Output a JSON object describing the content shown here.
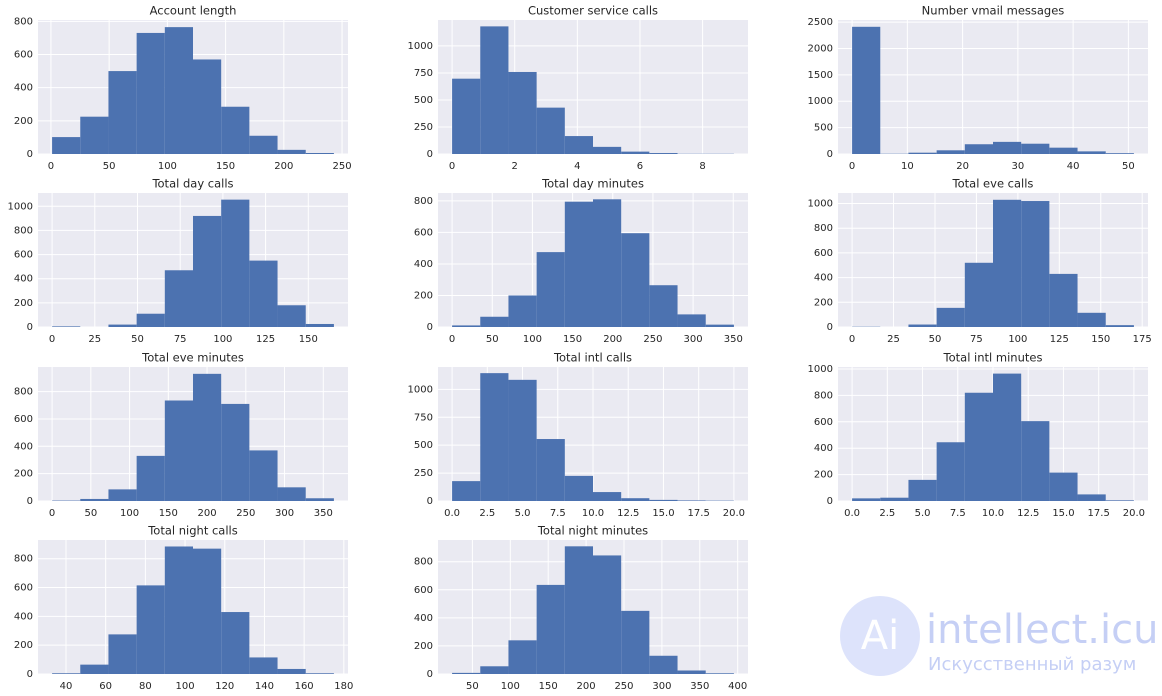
{
  "chart_data": [
    {
      "type": "histogram",
      "title": "Account length",
      "bins": [
        1,
        25.2,
        49.4,
        73.6,
        97.8,
        122,
        146.2,
        170.4,
        194.6,
        218.8,
        243
      ],
      "counts": [
        102,
        225,
        500,
        730,
        765,
        570,
        285,
        110,
        25,
        6
      ],
      "xlim": [
        -11.1,
        255.1
      ],
      "ylim": [
        0,
        808
      ],
      "xticks": [
        0,
        50,
        100,
        150,
        200,
        250
      ],
      "yticks": [
        0,
        200,
        400,
        600,
        800
      ],
      "grid": true,
      "color": "#4c72b0"
    },
    {
      "type": "histogram",
      "title": "Customer service calls",
      "bins": [
        0,
        0.9,
        1.8,
        2.7,
        3.6,
        4.5,
        5.4,
        6.3,
        7.2,
        8.1,
        9
      ],
      "counts": [
        697,
        1181,
        759,
        429,
        166,
        66,
        22,
        9,
        2,
        2
      ],
      "xlim": [
        -0.45,
        9.45
      ],
      "ylim": [
        0,
        1240
      ],
      "xticks": [
        0,
        2,
        4,
        6,
        8
      ],
      "yticks": [
        0,
        250,
        500,
        750,
        1000
      ],
      "grid": true,
      "color": "#4c72b0"
    },
    {
      "type": "histogram",
      "title": "Number vmail messages",
      "bins": [
        0,
        5.1,
        10.2,
        15.3,
        20.4,
        25.5,
        30.6,
        35.7,
        40.8,
        45.9,
        51
      ],
      "counts": [
        2411,
        5,
        25,
        70,
        185,
        230,
        195,
        120,
        50,
        15
      ],
      "xlim": [
        -2.55,
        53.55
      ],
      "ylim": [
        0,
        2540
      ],
      "xticks": [
        0,
        10,
        20,
        30,
        40,
        50
      ],
      "yticks": [
        0,
        500,
        1000,
        1500,
        2000,
        2500
      ],
      "grid": true,
      "color": "#4c72b0"
    },
    {
      "type": "histogram",
      "title": "Total day calls",
      "bins": [
        0,
        16.5,
        33,
        49.5,
        66,
        82.5,
        99,
        115.5,
        132,
        148.5,
        165
      ],
      "counts": [
        5,
        0,
        20,
        110,
        470,
        920,
        1055,
        550,
        180,
        25
      ],
      "xlim": [
        -8.25,
        173.25
      ],
      "ylim": [
        0,
        1110
      ],
      "xticks": [
        0,
        25,
        50,
        75,
        100,
        125,
        150
      ],
      "yticks": [
        0,
        200,
        400,
        600,
        800,
        1000
      ],
      "grid": true,
      "color": "#4c72b0"
    },
    {
      "type": "histogram",
      "title": "Total day minutes",
      "bins": [
        0,
        35.08,
        70.16,
        105.24,
        140.32,
        175.4,
        210.48,
        245.56,
        280.64,
        315.72,
        350.8
      ],
      "counts": [
        10,
        65,
        200,
        475,
        795,
        810,
        595,
        265,
        80,
        15
      ],
      "xlim": [
        -17.54,
        368.34
      ],
      "ylim": [
        0,
        850
      ],
      "xticks": [
        0,
        50,
        100,
        150,
        200,
        250,
        300,
        350
      ],
      "yticks": [
        0,
        200,
        400,
        600,
        800
      ],
      "grid": true,
      "color": "#4c72b0"
    },
    {
      "type": "histogram",
      "title": "Total eve calls",
      "bins": [
        0,
        17,
        34,
        51,
        68,
        85,
        102,
        119,
        136,
        153,
        170
      ],
      "counts": [
        2,
        0,
        20,
        155,
        520,
        1030,
        1020,
        430,
        115,
        15
      ],
      "xlim": [
        -8.5,
        178.5
      ],
      "ylim": [
        0,
        1085
      ],
      "xticks": [
        0,
        25,
        50,
        75,
        100,
        125,
        150,
        175
      ],
      "yticks": [
        0,
        200,
        400,
        600,
        800,
        1000
      ],
      "grid": true,
      "color": "#4c72b0"
    },
    {
      "type": "histogram",
      "title": "Total eve minutes",
      "bins": [
        0,
        36.37,
        72.74,
        109.11,
        145.48,
        181.85,
        218.22,
        254.59,
        290.96,
        327.33,
        363.7
      ],
      "counts": [
        3,
        15,
        85,
        330,
        735,
        930,
        710,
        370,
        100,
        20
      ],
      "xlim": [
        -18.2,
        381.9
      ],
      "ylim": [
        0,
        980
      ],
      "xticks": [
        0,
        50,
        100,
        150,
        200,
        250,
        300,
        350
      ],
      "yticks": [
        0,
        200,
        400,
        600,
        800
      ],
      "grid": true,
      "color": "#4c72b0"
    },
    {
      "type": "histogram",
      "title": "Total intl calls",
      "bins": [
        0,
        2,
        4,
        6,
        8,
        10,
        12,
        14,
        16,
        18,
        20
      ],
      "counts": [
        178,
        1145,
        1085,
        555,
        225,
        80,
        25,
        10,
        5,
        3
      ],
      "xlim": [
        -1,
        21
      ],
      "ylim": [
        0,
        1200
      ],
      "xticks": [
        {
          "value": 0,
          "label": "0.0"
        },
        2.5,
        {
          "value": 5,
          "label": "5.0"
        },
        7.5,
        {
          "value": 10,
          "label": "10.0"
        },
        12.5,
        {
          "value": 15,
          "label": "15.0"
        },
        17.5,
        {
          "value": 20,
          "label": "20.0"
        }
      ],
      "yticks": [
        0,
        250,
        500,
        750,
        1000
      ],
      "grid": true,
      "color": "#4c72b0"
    },
    {
      "type": "histogram",
      "title": "Total intl minutes",
      "bins": [
        0,
        2,
        4,
        6,
        8,
        10,
        12,
        14,
        16,
        18,
        20
      ],
      "counts": [
        20,
        25,
        160,
        445,
        820,
        965,
        605,
        215,
        50,
        5
      ],
      "xlim": [
        -1,
        21
      ],
      "ylim": [
        0,
        1015
      ],
      "xticks": [
        {
          "value": 0,
          "label": "0.0"
        },
        2.5,
        {
          "value": 5,
          "label": "5.0"
        },
        7.5,
        {
          "value": 10,
          "label": "10.0"
        },
        12.5,
        {
          "value": 15,
          "label": "15.0"
        },
        17.5,
        {
          "value": 20,
          "label": "20.0"
        }
      ],
      "yticks": [
        0,
        200,
        400,
        600,
        800,
        1000
      ],
      "grid": true,
      "color": "#4c72b0"
    },
    {
      "type": "histogram",
      "title": "Total night calls",
      "bins": [
        33,
        47.2,
        61.4,
        75.6,
        89.8,
        104,
        118.2,
        132.4,
        146.6,
        160.8,
        175
      ],
      "counts": [
        5,
        65,
        275,
        615,
        885,
        870,
        430,
        115,
        35,
        5
      ],
      "xlim": [
        25.9,
        182.1
      ],
      "ylim": [
        0,
        930
      ],
      "xticks": [
        40,
        60,
        80,
        100,
        120,
        140,
        160,
        180
      ],
      "yticks": [
        0,
        200,
        400,
        600,
        800
      ],
      "grid": true,
      "color": "#4c72b0"
    },
    {
      "type": "histogram",
      "title": "Total night minutes",
      "bins": [
        23.2,
        60.38,
        97.56,
        134.74,
        171.92,
        209.1,
        246.28,
        283.46,
        320.64,
        357.82,
        395
      ],
      "counts": [
        8,
        55,
        240,
        635,
        910,
        845,
        450,
        130,
        25,
        5
      ],
      "xlim": [
        4.61,
        413.6
      ],
      "ylim": [
        0,
        955
      ],
      "xticks": [
        50,
        100,
        150,
        200,
        250,
        300,
        350,
        400
      ],
      "yticks": [
        0,
        200,
        400,
        600,
        800
      ],
      "grid": true,
      "color": "#4c72b0"
    }
  ],
  "watermark": {
    "logo": "Ai",
    "brand": "intellect.icu",
    "tagline": "Искусственный разум"
  }
}
